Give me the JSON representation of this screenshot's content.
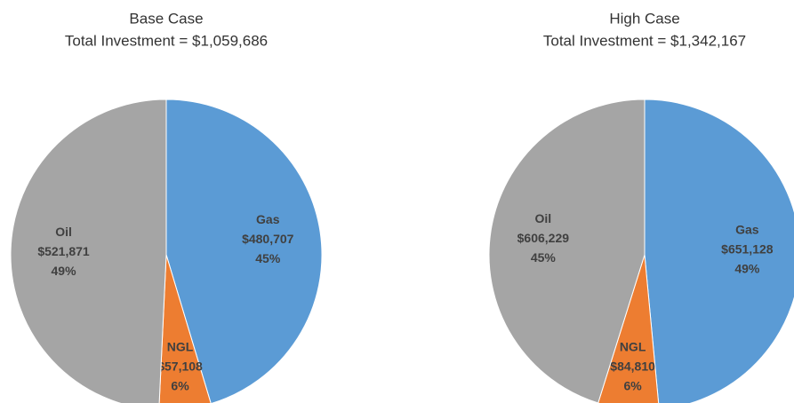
{
  "chart_data": [
    {
      "type": "pie",
      "title": "Base Case",
      "subtitle": "Total Investment = $1,059,686",
      "categories": [
        "Gas",
        "NGL",
        "Oil"
      ],
      "values": [
        480707,
        57108,
        521871
      ],
      "value_labels": [
        "$480,707",
        "$57,108",
        "$521,871"
      ],
      "percent_labels": [
        "45%",
        "6%",
        "49%"
      ],
      "colors": [
        "#5b9bd5",
        "#ed7d31",
        "#a5a5a5"
      ]
    },
    {
      "type": "pie",
      "title": "High Case",
      "subtitle": "Total Investment = $1,342,167",
      "categories": [
        "Gas",
        "NGL",
        "Oil"
      ],
      "values": [
        651128,
        84810,
        606229
      ],
      "value_labels": [
        "$651,128",
        "$84,810",
        "$606,229"
      ],
      "percent_labels": [
        "49%",
        "6%",
        "45%"
      ],
      "colors": [
        "#5b9bd5",
        "#ed7d31",
        "#a5a5a5"
      ]
    }
  ]
}
